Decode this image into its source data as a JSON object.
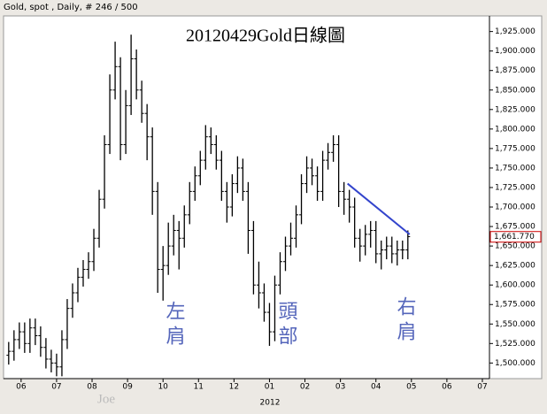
{
  "chart_data": {
    "type": "ohlc",
    "header": "Gold, spot , Daily, # 246 / 500",
    "title": "20120429Gold日線圖",
    "watermark": "Joe",
    "year_label": "2012",
    "annotations": [
      "左肩",
      "頭部",
      "右肩"
    ],
    "color": "#000000",
    "x": [
      5.65,
      5.8,
      5.95,
      6.1,
      6.25,
      6.4,
      6.55,
      6.7,
      6.85,
      7.0,
      7.15,
      7.3,
      7.45,
      7.6,
      7.75,
      7.9,
      8.05,
      8.2,
      8.35,
      8.5,
      8.65,
      8.8,
      8.95,
      9.1,
      9.25,
      9.4,
      9.55,
      9.7,
      9.85,
      10.0,
      10.15,
      10.3,
      10.45,
      10.6,
      10.75,
      10.9,
      11.05,
      11.2,
      11.35,
      11.5,
      11.65,
      11.8,
      11.95,
      12.1,
      12.25,
      12.4,
      12.55,
      12.7,
      12.85,
      13.0,
      13.15,
      13.3,
      13.45,
      13.6,
      13.75,
      13.9,
      14.05,
      14.2,
      14.35,
      14.5,
      14.65,
      14.8,
      14.95,
      15.1,
      15.25,
      15.4,
      15.55,
      15.7,
      15.85,
      16.0,
      16.15,
      16.3,
      16.45,
      16.6,
      16.75,
      16.9
    ],
    "ohlc": [
      [
        1510,
        1527,
        1498,
        1515
      ],
      [
        1515,
        1542,
        1503,
        1530
      ],
      [
        1530,
        1552,
        1518,
        1540
      ],
      [
        1540,
        1552,
        1513,
        1525
      ],
      [
        1525,
        1557,
        1513,
        1545
      ],
      [
        1545,
        1557,
        1523,
        1535
      ],
      [
        1535,
        1547,
        1508,
        1520
      ],
      [
        1520,
        1532,
        1493,
        1505
      ],
      [
        1505,
        1517,
        1488,
        1500
      ],
      [
        1500,
        1512,
        1483,
        1495
      ],
      [
        1495,
        1542,
        1483,
        1530
      ],
      [
        1530,
        1582,
        1518,
        1570
      ],
      [
        1570,
        1602,
        1558,
        1590
      ],
      [
        1590,
        1622,
        1578,
        1610
      ],
      [
        1610,
        1632,
        1598,
        1620
      ],
      [
        1620,
        1642,
        1608,
        1630
      ],
      [
        1630,
        1672,
        1618,
        1660
      ],
      [
        1660,
        1722,
        1648,
        1710
      ],
      [
        1710,
        1792,
        1698,
        1780
      ],
      [
        1780,
        1870,
        1768,
        1850
      ],
      [
        1850,
        1912,
        1838,
        1880
      ],
      [
        1880,
        1892,
        1760,
        1780
      ],
      [
        1780,
        1850,
        1768,
        1830
      ],
      [
        1830,
        1921,
        1818,
        1890
      ],
      [
        1890,
        1902,
        1838,
        1850
      ],
      [
        1850,
        1862,
        1808,
        1820
      ],
      [
        1820,
        1832,
        1760,
        1790
      ],
      [
        1790,
        1802,
        1690,
        1720
      ],
      [
        1720,
        1732,
        1590,
        1620
      ],
      [
        1620,
        1650,
        1580,
        1625
      ],
      [
        1625,
        1680,
        1613,
        1650
      ],
      [
        1650,
        1690,
        1638,
        1670
      ],
      [
        1670,
        1682,
        1620,
        1660
      ],
      [
        1660,
        1702,
        1648,
        1690
      ],
      [
        1690,
        1732,
        1678,
        1720
      ],
      [
        1720,
        1752,
        1708,
        1740
      ],
      [
        1740,
        1772,
        1728,
        1760
      ],
      [
        1760,
        1805,
        1748,
        1790
      ],
      [
        1790,
        1802,
        1768,
        1780
      ],
      [
        1780,
        1792,
        1748,
        1760
      ],
      [
        1760,
        1772,
        1708,
        1720
      ],
      [
        1720,
        1732,
        1680,
        1700
      ],
      [
        1700,
        1742,
        1688,
        1730
      ],
      [
        1730,
        1765,
        1718,
        1750
      ],
      [
        1750,
        1762,
        1708,
        1720
      ],
      [
        1720,
        1732,
        1640,
        1670
      ],
      [
        1670,
        1682,
        1588,
        1600
      ],
      [
        1600,
        1630,
        1570,
        1590
      ],
      [
        1590,
        1602,
        1553,
        1565
      ],
      [
        1565,
        1577,
        1522,
        1540
      ],
      [
        1540,
        1612,
        1528,
        1600
      ],
      [
        1600,
        1642,
        1588,
        1630
      ],
      [
        1630,
        1662,
        1618,
        1650
      ],
      [
        1650,
        1680,
        1638,
        1660
      ],
      [
        1660,
        1702,
        1648,
        1690
      ],
      [
        1690,
        1742,
        1678,
        1730
      ],
      [
        1730,
        1765,
        1718,
        1750
      ],
      [
        1750,
        1762,
        1728,
        1740
      ],
      [
        1740,
        1752,
        1708,
        1720
      ],
      [
        1720,
        1772,
        1708,
        1760
      ],
      [
        1760,
        1782,
        1748,
        1770
      ],
      [
        1770,
        1792,
        1758,
        1780
      ],
      [
        1780,
        1792,
        1700,
        1720
      ],
      [
        1720,
        1732,
        1690,
        1710
      ],
      [
        1710,
        1722,
        1680,
        1700
      ],
      [
        1700,
        1712,
        1648,
        1660
      ],
      [
        1660,
        1672,
        1630,
        1650
      ],
      [
        1650,
        1677,
        1638,
        1665
      ],
      [
        1665,
        1682,
        1648,
        1670
      ],
      [
        1670,
        1682,
        1628,
        1640
      ],
      [
        1640,
        1657,
        1620,
        1645
      ],
      [
        1645,
        1662,
        1633,
        1650
      ],
      [
        1650,
        1662,
        1628,
        1640
      ],
      [
        1640,
        1657,
        1625,
        1645
      ],
      [
        1645,
        1657,
        1633,
        1645
      ],
      [
        1645,
        1670,
        1633,
        1662
      ]
    ],
    "last_price": {
      "value": 1661.77,
      "label": "1,661.770",
      "color": "#cc0000"
    },
    "trendline": {
      "x": [
        15.2,
        16.95
      ],
      "y": [
        1730,
        1665
      ],
      "color": "#3344cc"
    },
    "annotation_color": "#5566bb",
    "xlim": [
      5.53,
      19.2
    ],
    "xticks": [
      {
        "value": 6,
        "label": "06"
      },
      {
        "value": 7,
        "label": "07"
      },
      {
        "value": 8,
        "label": "08"
      },
      {
        "value": 9,
        "label": "09"
      },
      10,
      11,
      12,
      {
        "value": 13,
        "label": "01"
      },
      {
        "value": 14,
        "label": "02"
      },
      {
        "value": 15,
        "label": "03"
      },
      {
        "value": 16,
        "label": "04"
      },
      {
        "value": 17,
        "label": "05"
      },
      {
        "value": 18,
        "label": "06"
      },
      {
        "value": 19,
        "label": "07"
      }
    ],
    "ylim": [
      1480,
      1945
    ],
    "yticks": [
      {
        "value": 1500,
        "label": "1,500.000"
      },
      {
        "value": 1525,
        "label": "1,525.000"
      },
      {
        "value": 1550,
        "label": "1,550.000"
      },
      {
        "value": 1575,
        "label": "1,575.000"
      },
      {
        "value": 1600,
        "label": "1,600.000"
      },
      {
        "value": 1625,
        "label": "1,625.000"
      },
      {
        "value": 1650,
        "label": "1,650.000"
      },
      {
        "value": 1675,
        "label": "1,675.000"
      },
      {
        "value": 1700,
        "label": "1,700.000"
      },
      {
        "value": 1725,
        "label": "1,725.000"
      },
      {
        "value": 1750,
        "label": "1,750.000"
      },
      {
        "value": 1775,
        "label": "1,775.000"
      },
      {
        "value": 1800,
        "label": "1,800.000"
      },
      {
        "value": 1825,
        "label": "1,825.000"
      },
      {
        "value": 1850,
        "label": "1,850.000"
      },
      {
        "value": 1875,
        "label": "1,875.000"
      },
      {
        "value": 1900,
        "label": "1,900.000"
      },
      {
        "value": 1925,
        "label": "1,925.000"
      }
    ]
  }
}
